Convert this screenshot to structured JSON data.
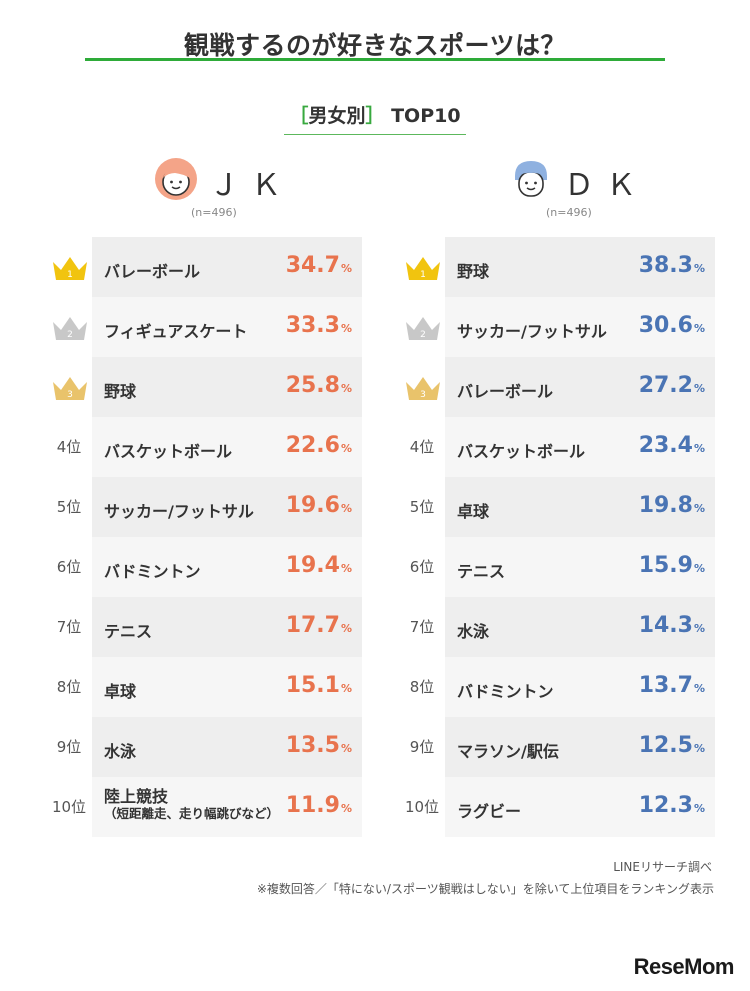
{
  "title": "観戦するのが好きなスポーツは？",
  "subtitle": {
    "bracket_open": "［",
    "text": "男女別",
    "bracket_close": "］",
    "suffix": "TOP10"
  },
  "colors": {
    "accent_green": "#2eab39",
    "jk_value": "#e8734d",
    "dk_value": "#4a74b4",
    "gold_crown": "#f1c40f",
    "silver_crown": "#c8c8c8",
    "bronze_crown": "#e9c36b"
  },
  "chart_data": [
    {
      "type": "bar",
      "group": "JK",
      "group_label": "ＪＫ",
      "n": "(n=496)",
      "unit": "%",
      "ranks": [
        "1",
        "2",
        "3",
        "4位",
        "5位",
        "6位",
        "7位",
        "8位",
        "9位",
        "10位"
      ],
      "categories": [
        "バレーボール",
        "フィギュアスケート",
        "野球",
        "バスケットボール",
        "サッカー/フットサル",
        "バドミントン",
        "テニス",
        "卓球",
        "水泳",
        "陸上競技"
      ],
      "category_notes": [
        "",
        "",
        "",
        "",
        "",
        "",
        "",
        "",
        "",
        "（短距離走、走り幅跳びなど）"
      ],
      "values": [
        34.7,
        33.3,
        25.8,
        22.6,
        19.6,
        19.4,
        17.7,
        15.1,
        13.5,
        11.9
      ]
    },
    {
      "type": "bar",
      "group": "DK",
      "group_label": "ＤＫ",
      "n": "(n=496)",
      "unit": "%",
      "ranks": [
        "1",
        "2",
        "3",
        "4位",
        "5位",
        "6位",
        "7位",
        "8位",
        "9位",
        "10位"
      ],
      "categories": [
        "野球",
        "サッカー/フットサル",
        "バレーボール",
        "バスケットボール",
        "卓球",
        "テニス",
        "水泳",
        "バドミントン",
        "マラソン/駅伝",
        "ラグビー"
      ],
      "category_notes": [
        "",
        "",
        "",
        "",
        "",
        "",
        "",
        "",
        "",
        ""
      ],
      "values": [
        38.3,
        30.6,
        27.2,
        23.4,
        19.8,
        15.9,
        14.3,
        13.7,
        12.5,
        12.3
      ]
    }
  ],
  "footer": {
    "source": "LINEリサーチ調べ",
    "note": "※複数回答／「特にない/スポーツ観戦はしない」を除いて上位項目をランキング表示"
  },
  "logo": "ReseMom"
}
